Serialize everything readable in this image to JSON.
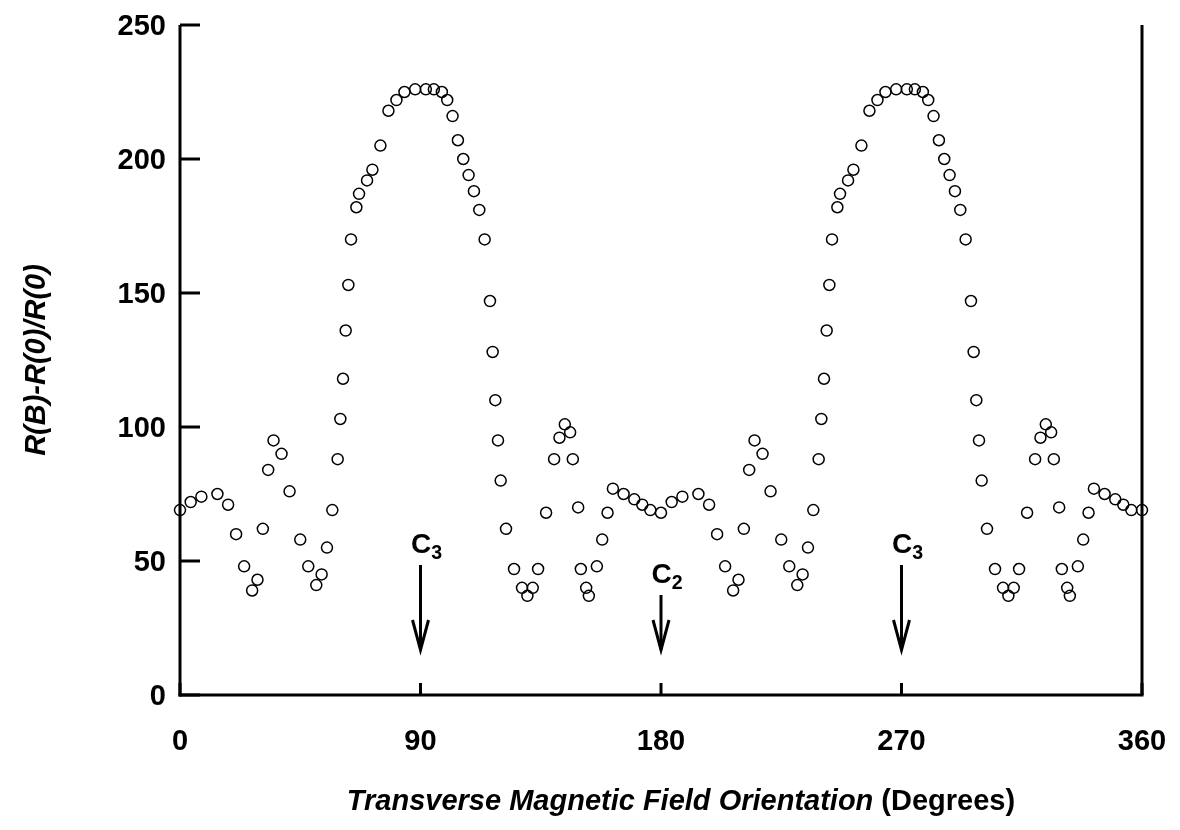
{
  "chart_data": {
    "type": "scatter",
    "xlabel": "Transverse Magnetic Field Orientation (Degrees)",
    "ylabel": "R(B)-R(0)/R(0)",
    "xlim": [
      0,
      360
    ],
    "ylim": [
      0,
      250
    ],
    "xticks": [
      0,
      90,
      180,
      270,
      360
    ],
    "yticks": [
      0,
      50,
      100,
      150,
      200,
      250
    ],
    "marker": "circle",
    "grid": false,
    "series": [
      {
        "color": "#000000",
        "x": [
          0,
          4,
          8,
          14,
          18,
          21,
          24,
          27,
          29,
          31,
          33,
          35,
          38,
          41,
          45,
          48,
          51,
          53,
          55,
          57,
          59,
          60,
          61,
          62,
          63,
          64,
          66,
          67,
          70,
          72,
          75,
          78,
          81,
          84,
          88,
          92,
          95,
          98,
          100,
          102,
          104,
          106,
          108,
          110,
          112,
          114,
          116,
          117,
          118,
          119,
          120,
          122,
          125,
          128,
          130,
          132,
          134,
          137,
          140,
          142,
          144,
          146,
          147,
          149,
          150,
          152,
          153,
          156,
          158,
          160,
          162,
          166,
          170,
          173,
          176,
          180,
          184,
          188,
          194,
          198,
          201,
          204,
          207,
          209,
          211,
          213,
          215,
          218,
          221,
          225,
          228,
          231,
          233,
          235,
          237,
          239,
          240,
          241,
          242,
          243,
          244,
          246,
          247,
          250,
          252,
          255,
          258,
          261,
          264,
          268,
          272,
          275,
          278,
          280,
          282,
          284,
          286,
          288,
          290,
          292,
          294,
          296,
          297,
          298,
          299,
          300,
          302,
          305,
          308,
          310,
          312,
          314,
          317,
          320,
          322,
          324,
          326,
          327,
          329,
          330,
          332,
          333,
          336,
          338,
          340,
          342,
          346,
          350,
          353,
          356,
          360
        ],
        "values": [
          69,
          72,
          74,
          75,
          71,
          60,
          48,
          39,
          43,
          62,
          84,
          95,
          90,
          76,
          58,
          48,
          41,
          45,
          55,
          69,
          88,
          103,
          118,
          136,
          153,
          170,
          182,
          187,
          192,
          196,
          205,
          218,
          222,
          225,
          226,
          226,
          226,
          225,
          222,
          216,
          207,
          200,
          194,
          188,
          181,
          170,
          147,
          128,
          110,
          95,
          80,
          62,
          47,
          40,
          37,
          40,
          47,
          68,
          88,
          96,
          101,
          98,
          88,
          70,
          47,
          40,
          37,
          48,
          58,
          68,
          77,
          75,
          73,
          71,
          69,
          68,
          72,
          74,
          75,
          71,
          60,
          48,
          39,
          43,
          62,
          84,
          95,
          90,
          76,
          58,
          48,
          41,
          45,
          55,
          69,
          88,
          103,
          118,
          136,
          153,
          170,
          182,
          187,
          192,
          196,
          205,
          218,
          222,
          225,
          226,
          226,
          226,
          225,
          222,
          216,
          207,
          200,
          194,
          188,
          181,
          170,
          147,
          128,
          110,
          95,
          80,
          62,
          47,
          40,
          37,
          40,
          47,
          68,
          88,
          96,
          101,
          98,
          88,
          70,
          47,
          40,
          37,
          48,
          58,
          68,
          77,
          75,
          73,
          71,
          69,
          69
        ]
      }
    ],
    "annotations": [
      "C$_{3}$",
      "C$_{2}$",
      "C$_{3}$"
    ]
  }
}
